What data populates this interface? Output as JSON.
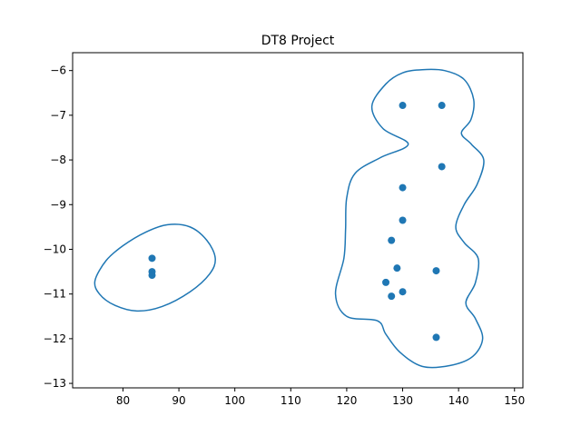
{
  "chart_data": {
    "type": "scatter",
    "title": "DT8 Project",
    "xlabel": "",
    "ylabel": "",
    "xlim": [
      71,
      151.5
    ],
    "ylim": [
      -13.1,
      -5.6
    ],
    "x_ticks": [
      80,
      90,
      100,
      110,
      120,
      130,
      140,
      150
    ],
    "y_ticks": [
      -6,
      -7,
      -8,
      -9,
      -10,
      -11,
      -12,
      -13
    ],
    "grid": false,
    "colors": {
      "series": "#1f77b4",
      "axes": "#000000",
      "background": "#ffffff"
    },
    "points": [
      {
        "x": 85.2,
        "y": -10.2
      },
      {
        "x": 85.2,
        "y": -10.5
      },
      {
        "x": 85.2,
        "y": -10.58
      },
      {
        "x": 130.0,
        "y": -6.78
      },
      {
        "x": 137.0,
        "y": -6.78
      },
      {
        "x": 137.0,
        "y": -8.15
      },
      {
        "x": 130.0,
        "y": -8.62
      },
      {
        "x": 130.0,
        "y": -9.35
      },
      {
        "x": 128.0,
        "y": -9.8
      },
      {
        "x": 129.0,
        "y": -10.42
      },
      {
        "x": 136.0,
        "y": -10.48
      },
      {
        "x": 127.0,
        "y": -10.74
      },
      {
        "x": 130.0,
        "y": -10.95
      },
      {
        "x": 128.0,
        "y": -11.05
      },
      {
        "x": 136.0,
        "y": -11.97
      }
    ],
    "boundaries": [
      {
        "closed": true,
        "points": [
          [
            75,
            -10.7
          ],
          [
            77,
            -10.25
          ],
          [
            80,
            -9.92
          ],
          [
            84,
            -9.62
          ],
          [
            88,
            -9.45
          ],
          [
            92,
            -9.5
          ],
          [
            95,
            -9.8
          ],
          [
            96.5,
            -10.2
          ],
          [
            95.5,
            -10.55
          ],
          [
            92,
            -10.95
          ],
          [
            87,
            -11.28
          ],
          [
            82.5,
            -11.38
          ],
          [
            78.5,
            -11.25
          ],
          [
            75.8,
            -11.0
          ]
        ]
      },
      {
        "closed": true,
        "points": [
          [
            133.5,
            -5.98
          ],
          [
            137.5,
            -6.0
          ],
          [
            141,
            -6.2
          ],
          [
            142.7,
            -6.65
          ],
          [
            142.2,
            -7.1
          ],
          [
            140.5,
            -7.4
          ],
          [
            142.3,
            -7.65
          ],
          [
            144.5,
            -8.0
          ],
          [
            143.3,
            -8.55
          ],
          [
            141,
            -9.0
          ],
          [
            139.5,
            -9.5
          ],
          [
            141,
            -9.85
          ],
          [
            143.5,
            -10.2
          ],
          [
            143,
            -10.75
          ],
          [
            141.3,
            -11.2
          ],
          [
            143,
            -11.55
          ],
          [
            144.3,
            -12.0
          ],
          [
            142.5,
            -12.4
          ],
          [
            138.5,
            -12.6
          ],
          [
            133.5,
            -12.62
          ],
          [
            129.5,
            -12.3
          ],
          [
            127,
            -11.9
          ],
          [
            125.5,
            -11.6
          ],
          [
            120,
            -11.5
          ],
          [
            118,
            -11.0
          ],
          [
            119.5,
            -10.2
          ],
          [
            119.8,
            -9.55
          ],
          [
            120,
            -8.85
          ],
          [
            121.5,
            -8.3
          ],
          [
            126,
            -7.95
          ],
          [
            131,
            -7.65
          ],
          [
            126.5,
            -7.3
          ],
          [
            124.5,
            -6.8
          ],
          [
            127,
            -6.3
          ],
          [
            130,
            -6.05
          ]
        ]
      }
    ]
  }
}
